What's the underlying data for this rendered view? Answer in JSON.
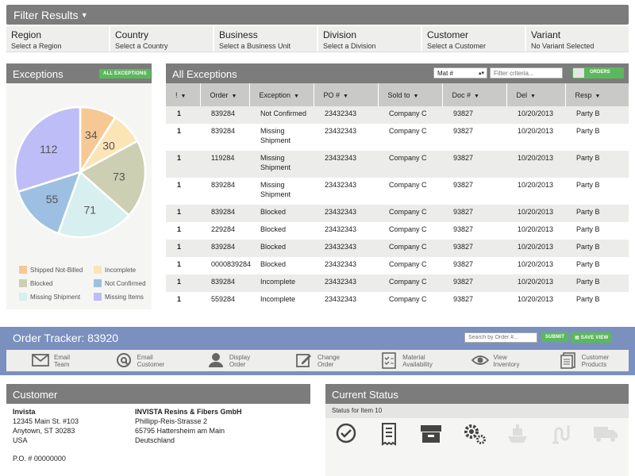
{
  "filter_bar": {
    "title": "Filter Results",
    "filters": [
      {
        "label": "Region",
        "value": "Select a Region"
      },
      {
        "label": "Country",
        "value": "Select a Country"
      },
      {
        "label": "Business",
        "value": "Select a Business Unit"
      },
      {
        "label": "Division",
        "value": "Select a Division"
      },
      {
        "label": "Customer",
        "value": "Select a Customer"
      },
      {
        "label": "Variant",
        "value": "No Variant Selected"
      }
    ]
  },
  "exceptions_panel": {
    "title": "Exceptions",
    "button": "ALL EXCEPTIONS"
  },
  "chart_data": {
    "type": "pie",
    "slices": [
      {
        "label": "Shipped Not-Billed",
        "value": 34,
        "color": "#f6c994"
      },
      {
        "label": "Incomplete",
        "value": 30,
        "color": "#fbe5b7"
      },
      {
        "label": "Blocked",
        "value": 73,
        "color": "#cdcfb3"
      },
      {
        "label": "Missing Shipment",
        "value": 71,
        "color": "#d7efee"
      },
      {
        "label": "Not Confirmed",
        "value": 55,
        "color": "#9dbfe1"
      },
      {
        "label": "Missing Items",
        "value": 112,
        "color": "#bfbdf7"
      }
    ],
    "legend_position": "bottom"
  },
  "table_panel": {
    "title": "All Exceptions",
    "material_select": "Mat #",
    "filter_placeholder": "Filter criteria...",
    "toggle_label": "ORDERS",
    "columns": [
      "!",
      "Order",
      "Exception",
      "PO #",
      "Sold to",
      "Doc #",
      "Del",
      "Resp"
    ],
    "rows": [
      [
        "1",
        "839284",
        "Not Confirmed",
        "23432343",
        "Company C",
        "93827",
        "10/20/2013",
        "Party B"
      ],
      [
        "1",
        "839284",
        "Missing Shipment",
        "23432343",
        "Company C",
        "93827",
        "10/20/2013",
        "Party B"
      ],
      [
        "1",
        "119284",
        "Missing Shipment",
        "23432343",
        "Company C",
        "93827",
        "10/20/2013",
        "Party B"
      ],
      [
        "1",
        "839284",
        "Missing Shipment",
        "23432343",
        "Company C",
        "93827",
        "10/20/2013",
        "Party B"
      ],
      [
        "1",
        "839284",
        "Blocked",
        "23432343",
        "Company C",
        "93827",
        "10/20/2013",
        "Party B"
      ],
      [
        "1",
        "229284",
        "Blocked",
        "23432343",
        "Company C",
        "93827",
        "10/20/2013",
        "Party B"
      ],
      [
        "1",
        "839284",
        "Blocked",
        "23432343",
        "Company C",
        "93827",
        "10/20/2013",
        "Party B"
      ],
      [
        "1",
        "0000839284",
        "Blocked",
        "23432343",
        "Company C",
        "93827",
        "10/20/2013",
        "Party B"
      ],
      [
        "1",
        "839284",
        "Incomplete",
        "23432343",
        "Company C",
        "93827",
        "10/20/2013",
        "Party B"
      ],
      [
        "1",
        "559284",
        "Incomplete",
        "23432343",
        "Company C",
        "93827",
        "10/20/2013",
        "Party B"
      ]
    ]
  },
  "order_tracker": {
    "title": "Order Tracker: 83920",
    "search_placeholder": "Search by Order #...",
    "submit_label": "SUBMIT",
    "save_label": "SAVE VIEW",
    "tools": [
      {
        "icon": "mail-icon",
        "line1": "Email",
        "line2": "Team"
      },
      {
        "icon": "at-icon",
        "line1": "Email",
        "line2": "Customer"
      },
      {
        "icon": "user-icon",
        "line1": "Display",
        "line2": "Order"
      },
      {
        "icon": "edit-icon",
        "line1": "Change",
        "line2": "Order"
      },
      {
        "icon": "checklist-icon",
        "line1": "Material",
        "line2": "Availability"
      },
      {
        "icon": "eye-icon",
        "line1": "View",
        "line2": "Inventory"
      },
      {
        "icon": "document-icon",
        "line1": "Customer",
        "line2": "Products"
      }
    ]
  },
  "customer_panel": {
    "title": "Customer",
    "address1": {
      "name": "Invista",
      "line1": "12345 Main St. #103",
      "line2": "Anytown, ST 30283",
      "line3": "USA"
    },
    "address2": {
      "name": "INVISTA Resins & Fibers GmbH",
      "line1": "Phillipp-Reis-Strasse 2",
      "line2": "65795 Hattersheim am Main",
      "line3": "Deutschland"
    },
    "po": "P.O. # 00000000"
  },
  "status_panel": {
    "title": "Current Status",
    "subtitle": "Status for Item 10",
    "icons": [
      "check-circle-icon",
      "receipt-icon",
      "archive-box-icon",
      "gears-icon",
      "ship-icon",
      "pipe-icon",
      "truck-icon"
    ]
  },
  "colors": {
    "header_gray": "#7c7c7c",
    "accent_green": "#5cb85c",
    "tracker_blue": "#7a90bf",
    "table_header": "#c9c9c7",
    "row_alt": "#ececea"
  }
}
